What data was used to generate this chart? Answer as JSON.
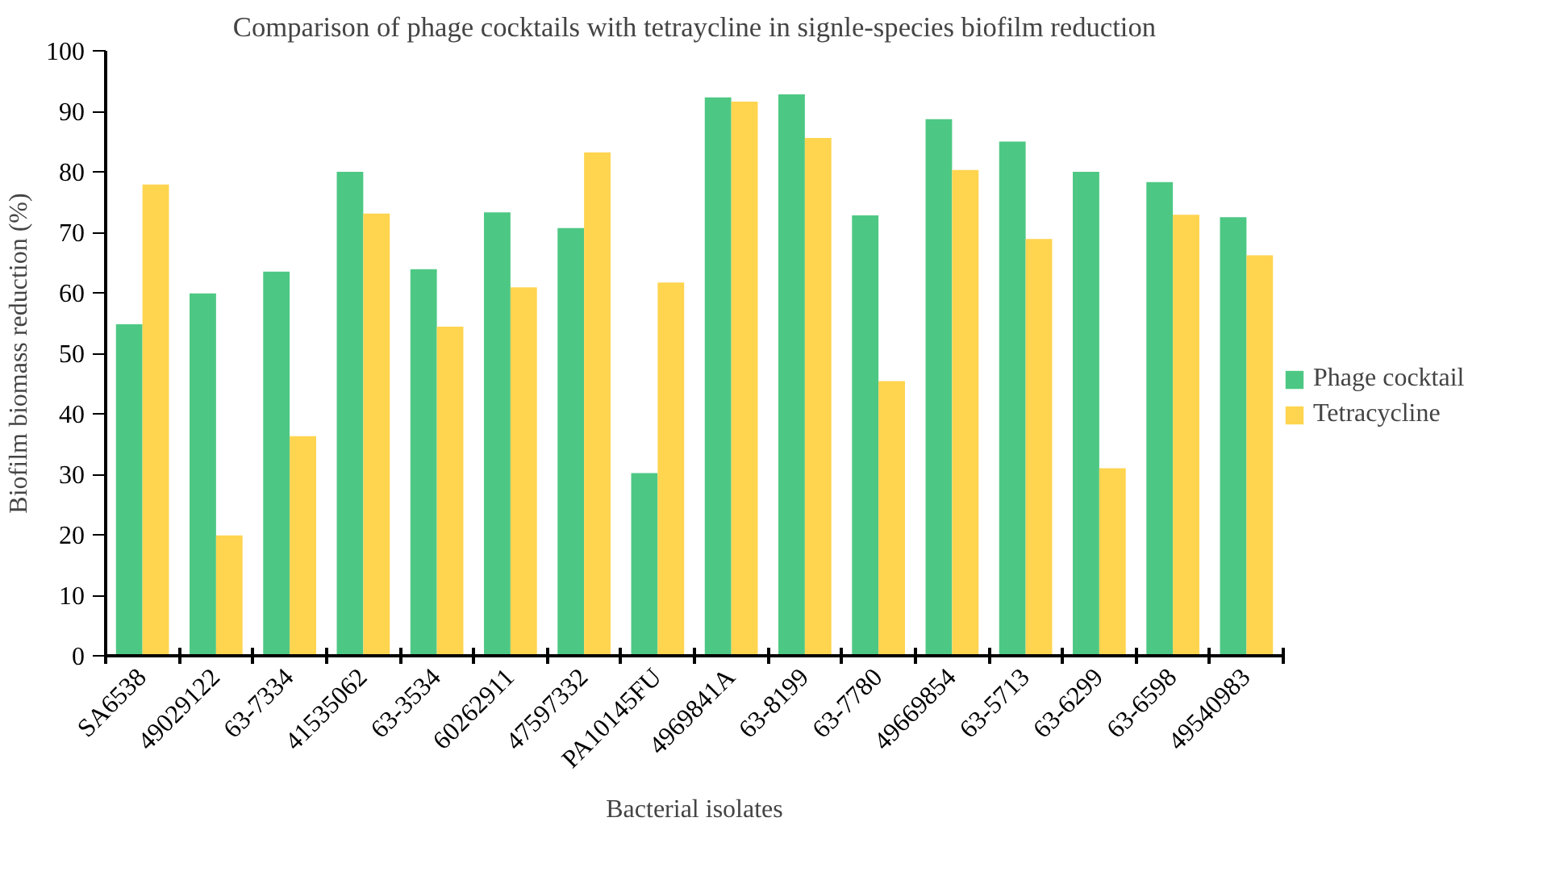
{
  "chart_data": {
    "type": "bar",
    "title": "Comparison of phage cocktails with tetraycline in signle-species biofilm reduction",
    "xlabel": "Bacterial isolates",
    "ylabel": "Biofilm biomass reduction (%)",
    "categories": [
      "SA6538",
      "49029122",
      "63-7334",
      "41535062",
      "63-3534",
      "60262911",
      "47597332",
      "PA10145FU",
      "4969841A",
      "63-8199",
      "63-7780",
      "49669854",
      "63-5713",
      "63-6299",
      "63-6598",
      "49540983"
    ],
    "series": [
      {
        "name": "Phage cocktail",
        "color": "#4dc884",
        "values": [
          54.8,
          59.9,
          63.5,
          80.0,
          63.9,
          73.3,
          70.7,
          30.2,
          92.3,
          92.8,
          72.8,
          88.7,
          85.0,
          80.0,
          78.3,
          72.5
        ]
      },
      {
        "name": "Tetracycline",
        "color": "#ffd44f",
        "values": [
          77.9,
          19.9,
          36.3,
          73.1,
          54.4,
          60.9,
          83.2,
          61.7,
          91.6,
          85.6,
          45.4,
          80.3,
          68.9,
          31.0,
          72.9,
          66.2
        ]
      }
    ],
    "ylim": [
      0,
      100
    ],
    "yticks": [
      0,
      10,
      20,
      30,
      40,
      50,
      60,
      70,
      80,
      90,
      100
    ],
    "grid": false,
    "legend": "right"
  }
}
